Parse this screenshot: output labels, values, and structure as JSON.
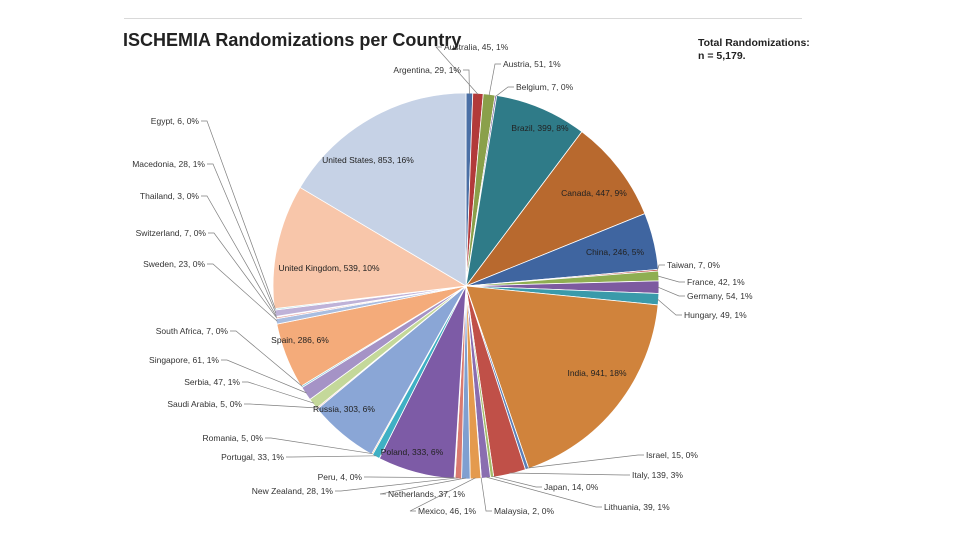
{
  "chart_data": {
    "type": "pie",
    "title": "ISCHEMIA Randomizations per Country",
    "total_label_1": "Total Randomizations:",
    "total_label_2": "n = 5,179.",
    "slices": [
      {
        "name": "Argentina",
        "label": "Argentina, 29, 1%",
        "value": 29,
        "pct": 1,
        "color": "#4a6fa5"
      },
      {
        "name": "Australia",
        "label": "Australia, 45, 1%",
        "value": 45,
        "pct": 1,
        "color": "#b23a3a"
      },
      {
        "name": "Austria",
        "label": "Austria, 51, 1%",
        "value": 51,
        "pct": 1,
        "color": "#8aa04a"
      },
      {
        "name": "Belgium",
        "label": "Belgium, 7, 0%",
        "value": 7,
        "pct": 0,
        "color": "#6f5a9c"
      },
      {
        "name": "Brazil",
        "label": "Brazil, 399, 8%",
        "value": 399,
        "pct": 8,
        "color": "#2f7b88"
      },
      {
        "name": "Canada",
        "label": "Canada, 447, 9%",
        "value": 447,
        "pct": 9,
        "color": "#b8692e"
      },
      {
        "name": "China",
        "label": "China, 246, 5%",
        "value": 246,
        "pct": 5,
        "color": "#3f65a0"
      },
      {
        "name": "Taiwan",
        "label": "Taiwan, 7, 0%",
        "value": 7,
        "pct": 0,
        "color": "#c0504d"
      },
      {
        "name": "France",
        "label": "France, 42, 1%",
        "value": 42,
        "pct": 1,
        "color": "#8fae52"
      },
      {
        "name": "Germany",
        "label": "Germany, 54, 1%",
        "value": 54,
        "pct": 1,
        "color": "#7d5aa0"
      },
      {
        "name": "Hungary",
        "label": "Hungary, 49, 1%",
        "value": 49,
        "pct": 1,
        "color": "#3a9aaa"
      },
      {
        "name": "India",
        "label": "India, 941, 18%",
        "value": 941,
        "pct": 18,
        "color": "#d0833c"
      },
      {
        "name": "Israel",
        "label": "Israel, 15, 0%",
        "value": 15,
        "pct": 0,
        "color": "#5b7fb8"
      },
      {
        "name": "Italy",
        "label": "Italy, 139, 3%",
        "value": 139,
        "pct": 3,
        "color": "#c05048"
      },
      {
        "name": "Japan",
        "label": "Japan, 14, 0%",
        "value": 14,
        "pct": 0,
        "color": "#a3bd6a"
      },
      {
        "name": "Lithuania",
        "label": "Lithuania, 39, 1%",
        "value": 39,
        "pct": 1,
        "color": "#8a6db0"
      },
      {
        "name": "Malaysia",
        "label": "Malaysia, 2, 0%",
        "value": 2,
        "pct": 0,
        "color": "#50aabb"
      },
      {
        "name": "Mexico",
        "label": "Mexico, 46, 1%",
        "value": 46,
        "pct": 1,
        "color": "#e49a4e"
      },
      {
        "name": "Netherlands",
        "label": "Netherlands, 37, 1%",
        "value": 37,
        "pct": 1,
        "color": "#7f9fd0"
      },
      {
        "name": "New Zealand",
        "label": "New Zealand, 28, 1%",
        "value": 28,
        "pct": 1,
        "color": "#d97a70"
      },
      {
        "name": "Peru",
        "label": "Peru, 4, 0%",
        "value": 4,
        "pct": 0,
        "color": "#b6cf85"
      },
      {
        "name": "Poland",
        "label": "Poland, 333, 6%",
        "value": 333,
        "pct": 6,
        "color": "#7d5ba6"
      },
      {
        "name": "Portugal",
        "label": "Portugal, 33, 1%",
        "value": 33,
        "pct": 1,
        "color": "#3fb0c4"
      },
      {
        "name": "Romania",
        "label": "Romania, 5, 0%",
        "value": 5,
        "pct": 0,
        "color": "#f0a868"
      },
      {
        "name": "Russia",
        "label": "Russia, 303, 6%",
        "value": 303,
        "pct": 6,
        "color": "#8aa6d6"
      },
      {
        "name": "Saudi Arabia",
        "label": "Saudi Arabia, 5, 0%",
        "value": 5,
        "pct": 0,
        "color": "#e4938c"
      },
      {
        "name": "Serbia",
        "label": "Serbia, 47, 1%",
        "value": 47,
        "pct": 1,
        "color": "#c4d89a"
      },
      {
        "name": "Singapore",
        "label": "Singapore, 61, 1%",
        "value": 61,
        "pct": 1,
        "color": "#a593c6"
      },
      {
        "name": "South Africa",
        "label": "South Africa, 7, 0%",
        "value": 7,
        "pct": 0,
        "color": "#7fc6d6"
      },
      {
        "name": "Spain",
        "label": "Spain, 286, 6%",
        "value": 286,
        "pct": 6,
        "color": "#f4ab7a"
      },
      {
        "name": "Sweden",
        "label": "Sweden, 23, 0%",
        "value": 23,
        "pct": 0,
        "color": "#a9bde0"
      },
      {
        "name": "Switzerland",
        "label": "Switzerland, 7, 0%",
        "value": 7,
        "pct": 0,
        "color": "#eaaaa4"
      },
      {
        "name": "Thailand",
        "label": "Thailand, 3, 0%",
        "value": 3,
        "pct": 0,
        "color": "#d3e2b4"
      },
      {
        "name": "Macedonia",
        "label": "Macedonia, 28, 1%",
        "value": 28,
        "pct": 1,
        "color": "#bfb2d8"
      },
      {
        "name": "Egypt",
        "label": "Egypt, 6, 0%",
        "value": 6,
        "pct": 0,
        "color": "#a8dce8"
      },
      {
        "name": "United Kingdom",
        "label": "United Kingdom, 539, 10%",
        "value": 539,
        "pct": 10,
        "color": "#f8c6aa"
      },
      {
        "name": "United States",
        "label": "United States, 853, 16%",
        "value": 853,
        "pct": 16,
        "color": "#c6d2e6"
      }
    ]
  }
}
